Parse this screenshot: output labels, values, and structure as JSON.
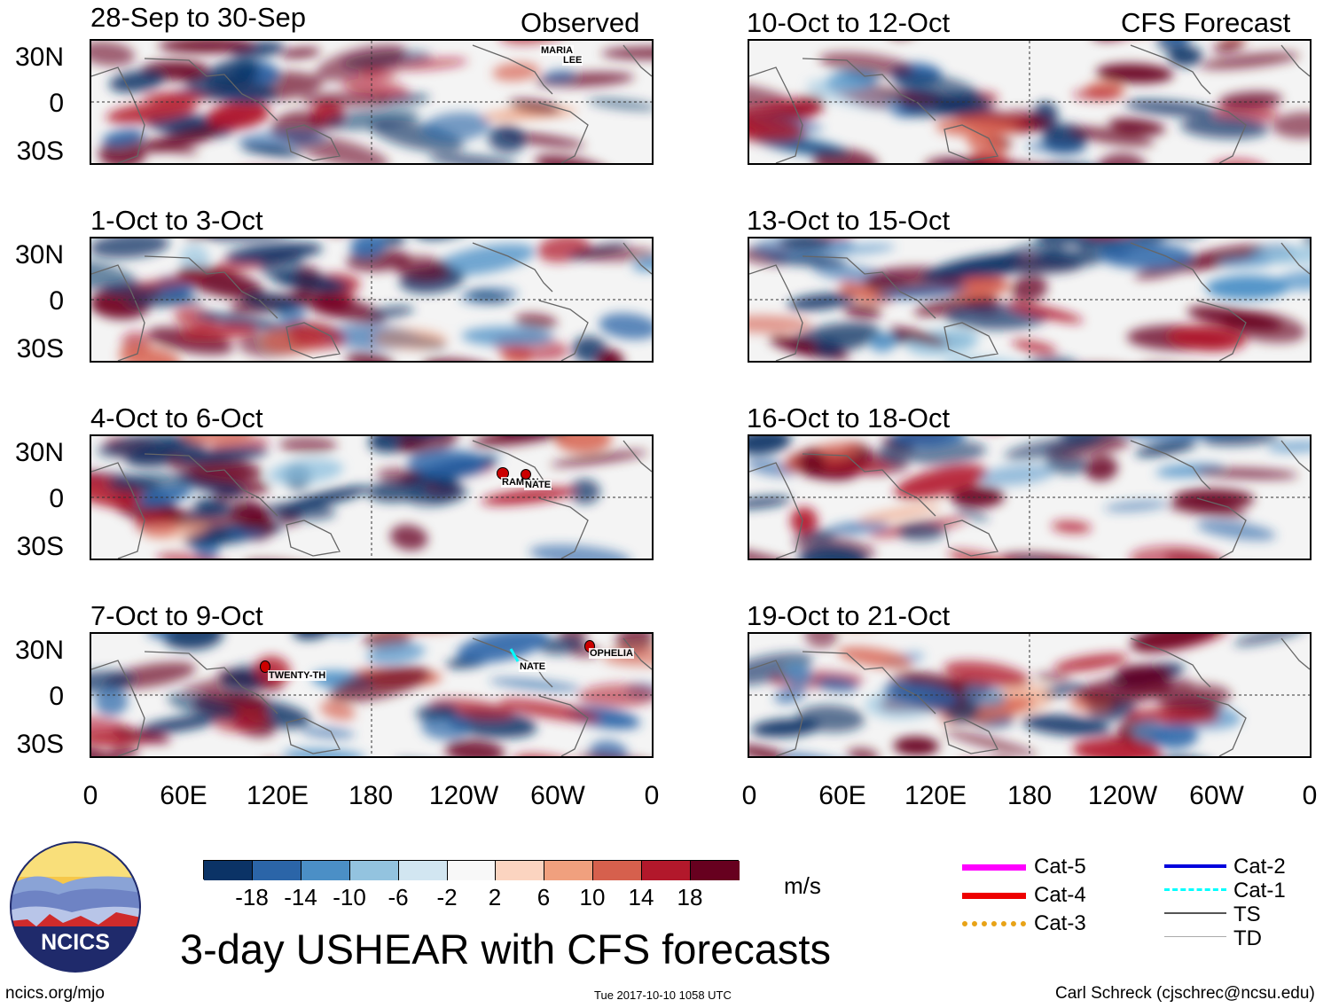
{
  "left_header": "Observed",
  "right_header": "CFS Forecast",
  "observed_panels": [
    {
      "title": "28-Sep to 30-Sep"
    },
    {
      "title": "1-Oct to 3-Oct"
    },
    {
      "title": "4-Oct to 6-Oct"
    },
    {
      "title": "7-Oct to 9-Oct"
    }
  ],
  "forecast_panels": [
    {
      "title": "10-Oct to 12-Oct"
    },
    {
      "title": "13-Oct to 15-Oct"
    },
    {
      "title": "16-Oct to 18-Oct"
    },
    {
      "title": "19-Oct to 21-Oct"
    }
  ],
  "lat_labels": [
    "30N",
    "0",
    "30S"
  ],
  "lon_labels": [
    "0",
    "60E",
    "120E",
    "180",
    "120W",
    "60W",
    "0"
  ],
  "storms": {
    "maria": "MARIA",
    "lee": "LEE",
    "ramon": "RAMON",
    "nate_a": "NATE",
    "twenty": "TWENTY-TH",
    "nate_b": "NATE",
    "ophelia": "OPHELIA"
  },
  "colorbar": {
    "labels": [
      "-18",
      "-14",
      "-10",
      "-6",
      "-2",
      "2",
      "6",
      "10",
      "14",
      "18"
    ],
    "colors": [
      "#0b3366",
      "#2b65a8",
      "#4b8fc6",
      "#93c3df",
      "#d2e6f1",
      "#f8f8f8",
      "#fbd4c0",
      "#f0a07e",
      "#d6604d",
      "#b2182b",
      "#67001f"
    ],
    "units": "m/s"
  },
  "legend": [
    {
      "label": "Cat-5",
      "color": "#ff00ff"
    },
    {
      "label": "Cat-4",
      "color": "#ee0000"
    },
    {
      "label": "Cat-3",
      "color": "#e8a317"
    },
    {
      "label": "Cat-2",
      "color": "#0000dd"
    },
    {
      "label": "Cat-1",
      "color": "#00ffff"
    },
    {
      "label": "TS",
      "color": "#555555"
    },
    {
      "label": "TD",
      "color": "#aaaaaa"
    }
  ],
  "logo_text": "NCICS",
  "main_title": "3-day USHEAR with CFS forecasts",
  "footer": {
    "left": "ncics.org/mjo",
    "center": "Tue 2017-10-10 1058 UTC",
    "right": "Carl Schreck (cjschrec@ncsu.edu)"
  }
}
